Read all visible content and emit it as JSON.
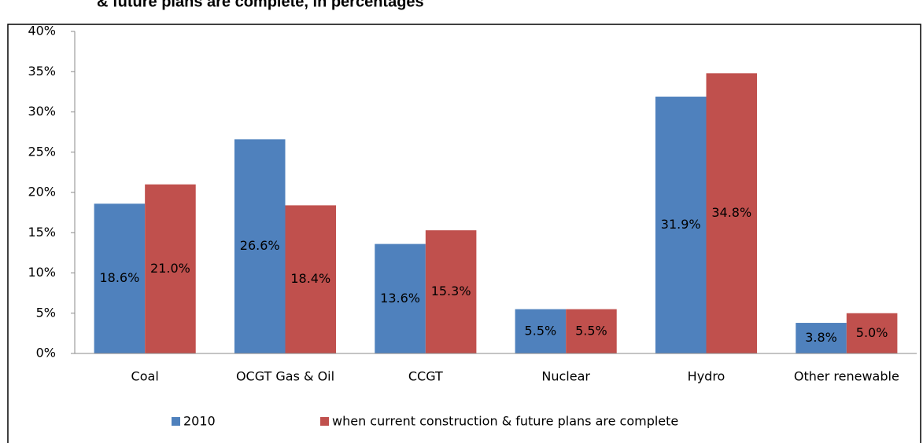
{
  "chart_data": {
    "type": "bar",
    "title": "& future plans are complete, in percentages",
    "categories": [
      "Coal",
      "OCGT Gas & Oil",
      "CCGT",
      "Nuclear",
      "Hydro",
      "Other renewable"
    ],
    "series": [
      {
        "name": "2010",
        "color": "#4f81bd",
        "values": [
          18.6,
          26.6,
          13.6,
          5.5,
          31.9,
          3.8
        ],
        "value_labels": [
          "18.6%",
          "26.6%",
          "13.6%",
          "5.5%",
          "31.9%",
          "3.8%"
        ]
      },
      {
        "name": "when current construction & future plans are complete",
        "color": "#c0504d",
        "values": [
          21.0,
          18.4,
          15.3,
          5.5,
          34.8,
          5.0
        ],
        "value_labels": [
          "21.0%",
          "18.4%",
          "15.3%",
          "5.5%",
          "34.8%",
          "5.0%"
        ]
      }
    ],
    "ylim": [
      0,
      40
    ],
    "yticks": [
      {
        "value": 0,
        "label": "0%"
      },
      {
        "value": 5,
        "label": "5%"
      },
      {
        "value": 10,
        "label": "10%"
      },
      {
        "value": 15,
        "label": "15%"
      },
      {
        "value": 20,
        "label": "20%"
      },
      {
        "value": 25,
        "label": "25%"
      },
      {
        "value": 30,
        "label": "30%"
      },
      {
        "value": 35,
        "label": "35%"
      },
      {
        "value": 40,
        "label": "40%"
      }
    ],
    "legend": "bottom"
  }
}
